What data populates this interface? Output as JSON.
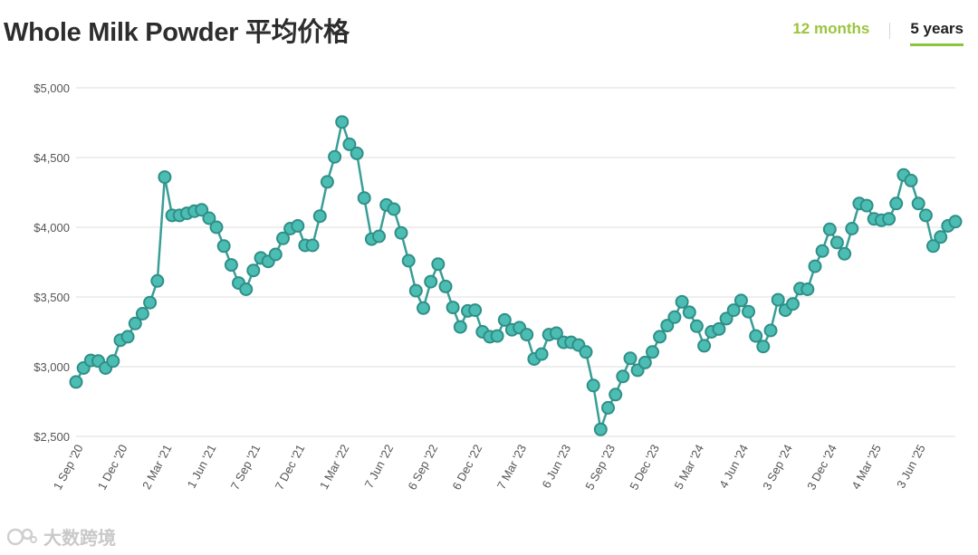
{
  "title": "Whole Milk Powder 平均价格",
  "range_tabs": [
    {
      "label": "12 months",
      "active": false
    },
    {
      "label": "5 years",
      "active": true
    }
  ],
  "watermark": "大数跨境",
  "colors": {
    "line": "#3a9e96",
    "marker_fill": "#4cbdb2",
    "marker_stroke": "#2f8f88",
    "grid": "#dedede",
    "accent": "#8cc33f"
  },
  "chart_data": {
    "type": "line",
    "title": "Whole Milk Powder 平均价格",
    "xlabel": "",
    "ylabel": "",
    "ylim": [
      2500,
      5000
    ],
    "yticks": [
      2500,
      3000,
      3500,
      4000,
      4500,
      5000
    ],
    "ytick_labels": [
      "$2,500",
      "$3,000",
      "$3,500",
      "$4,000",
      "$4,500",
      "$5,000"
    ],
    "grid": "horizontal",
    "x_tick_labels": [
      "1 Sep '20",
      "1 Dec '20",
      "2 Mar '21",
      "1 Jun '21",
      "7 Sep '21",
      "7 Dec '21",
      "1 Mar '22",
      "7 Jun '22",
      "6 Sep '22",
      "6 Dec '22",
      "7 Mar '23",
      "6 Jun '23",
      "5 Sep '23",
      "5 Dec '23",
      "5 Mar '24",
      "4 Jun '24",
      "3 Sep '24",
      "3 Dec '24",
      "4 Mar '25",
      "3 Jun '25"
    ],
    "x_tick_index": [
      0,
      6,
      12,
      18,
      24,
      30,
      36,
      42,
      48,
      54,
      60,
      66,
      72,
      78,
      84,
      90,
      96,
      102,
      108,
      114
    ],
    "series": [
      {
        "values": [
          2890,
          2990,
          3045,
          3040,
          2990,
          3040,
          3190,
          3215,
          3310,
          3380,
          3460,
          3615,
          4360,
          4085,
          4085,
          4100,
          4115,
          4125,
          4065,
          4000,
          3865,
          3730,
          3600,
          3555,
          3690,
          3780,
          3755,
          3805,
          3920,
          3990,
          4010,
          3870,
          3870,
          4080,
          4325,
          4505,
          4755,
          4595,
          4530,
          4210,
          3915,
          3935,
          4160,
          4130,
          3960,
          3760,
          3545,
          3420,
          3610,
          3735,
          3575,
          3425,
          3285,
          3400,
          3405,
          3250,
          3215,
          3220,
          3335,
          3265,
          3280,
          3230,
          3055,
          3090,
          3230,
          3240,
          3175,
          3175,
          3155,
          3105,
          2865,
          2550,
          2705,
          2800,
          2930,
          3060,
          2975,
          3030,
          3105,
          3215,
          3295,
          3355,
          3465,
          3390,
          3290,
          3150,
          3250,
          3270,
          3345,
          3405,
          3475,
          3395,
          3220,
          3145,
          3260,
          3480,
          3405,
          3450,
          3560,
          3555,
          3720,
          3830,
          3985,
          3890,
          3810,
          3990,
          4170,
          4155,
          4060,
          4050,
          4060,
          4170,
          4375,
          4335,
          4170,
          4085,
          3865,
          3930,
          4010,
          4040
        ]
      }
    ]
  }
}
